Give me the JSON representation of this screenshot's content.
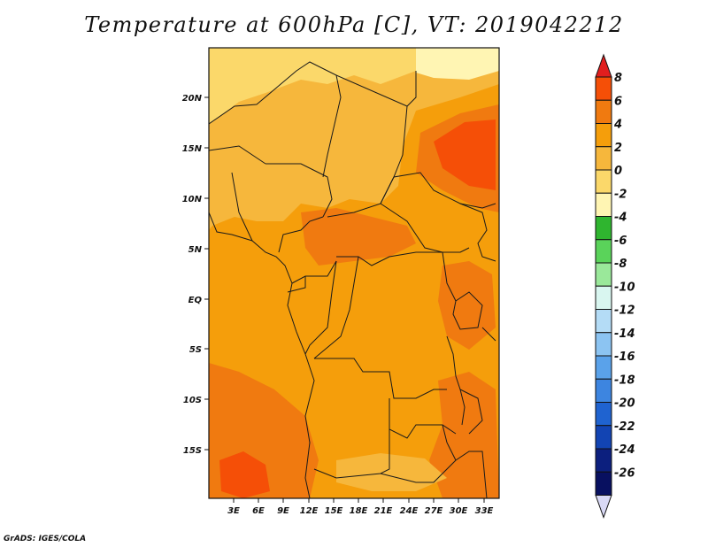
{
  "title": "Temperature at 600hPa [C], VT: 2019042212",
  "credit": "GrADS: IGES/COLA",
  "map": {
    "lon_ticks": [
      "3E",
      "6E",
      "9E",
      "12E",
      "15E",
      "18E",
      "21E",
      "24E",
      "27E",
      "30E",
      "33E"
    ],
    "lat_ticks": [
      "20N",
      "15N",
      "10N",
      "5N",
      "EQ",
      "5S",
      "10S",
      "15S"
    ]
  },
  "colorbar": {
    "labels": [
      "8",
      "6",
      "4",
      "2",
      "0",
      "-2",
      "-4",
      "-6",
      "-8",
      "-10",
      "-12",
      "-14",
      "-16",
      "-18",
      "-20",
      "-22",
      "-24",
      "-26"
    ],
    "colors": [
      "#e11e1e",
      "#f54f07",
      "#f07a10",
      "#f59e0b",
      "#f6b73c",
      "#fbd86a",
      "#fff5b3",
      "#2fb52f",
      "#5ad35a",
      "#9ae89a",
      "#d9f6f0",
      "#b4dcf6",
      "#8cc4f2",
      "#5aa2ea",
      "#3d85e0",
      "#1f63d0",
      "#1244b3",
      "#0c1f7e",
      "#081060",
      "#d9d9f5"
    ]
  },
  "chart_data": {
    "type": "heatmap",
    "title": "Temperature at 600hPa [C], VT: 2019042212",
    "variable_unit": "C",
    "x_range": [
      "0E",
      "35E"
    ],
    "y_range": [
      "20S",
      "24N"
    ],
    "x_ticks": [
      "3E",
      "6E",
      "9E",
      "12E",
      "15E",
      "18E",
      "21E",
      "24E",
      "27E",
      "30E",
      "33E"
    ],
    "y_ticks": [
      "20N",
      "15N",
      "10N",
      "5N",
      "EQ",
      "5S",
      "10S",
      "15S"
    ],
    "levels": [
      -26,
      -24,
      -22,
      -20,
      -18,
      -16,
      -14,
      -12,
      -10,
      -8,
      -6,
      -4,
      -2,
      0,
      2,
      4,
      6,
      8
    ]
  }
}
